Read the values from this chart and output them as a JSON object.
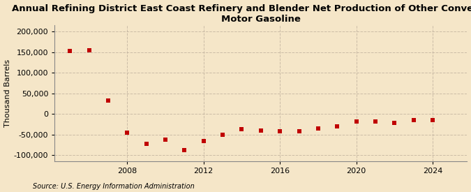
{
  "title": "Annual Refining District East Coast Refinery and Blender Net Production of Other Conventional\nMotor Gasoline",
  "ylabel": "Thousand Barrels",
  "source": "Source: U.S. Energy Information Administration",
  "background_color": "#f5e6c8",
  "years": [
    2005,
    2006,
    2007,
    2008,
    2009,
    2010,
    2011,
    2012,
    2013,
    2014,
    2015,
    2016,
    2017,
    2018,
    2019,
    2020,
    2021,
    2022,
    2023,
    2024
  ],
  "values": [
    152000,
    154000,
    32000,
    -46000,
    -73000,
    -63000,
    -88000,
    -65000,
    -50000,
    -37000,
    -40000,
    -42000,
    -42000,
    -35000,
    -30000,
    -18000,
    -18000,
    -22000,
    -15000,
    -15000
  ],
  "marker_color": "#c00000",
  "marker_size": 18,
  "ylim": [
    -115000,
    215000
  ],
  "yticks": [
    -100000,
    -50000,
    0,
    50000,
    100000,
    150000,
    200000
  ],
  "xticks": [
    2008,
    2012,
    2016,
    2020,
    2024
  ],
  "grid_color": "#b0a090",
  "grid_alpha": 0.6,
  "title_fontsize": 9.5,
  "axis_fontsize": 8,
  "tick_fontsize": 8,
  "source_fontsize": 7
}
